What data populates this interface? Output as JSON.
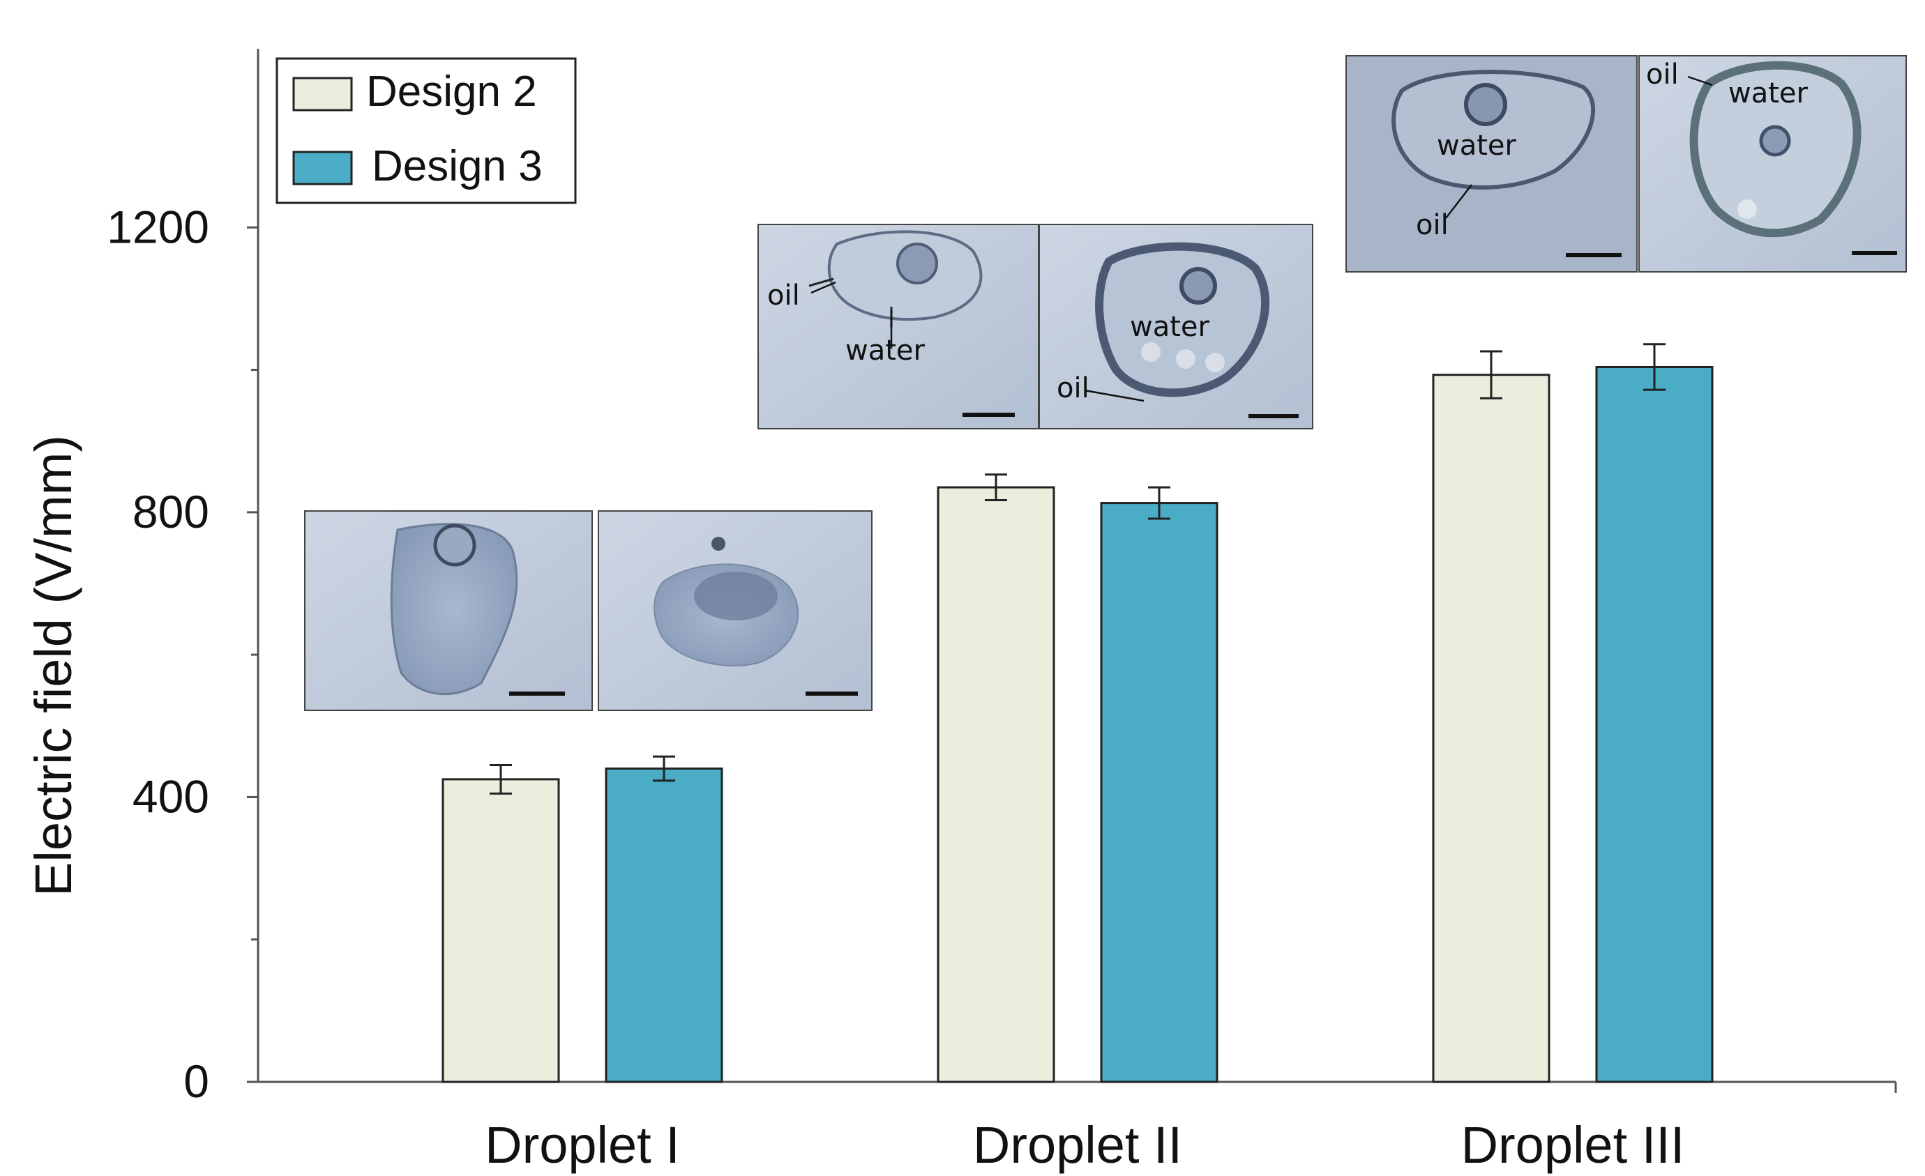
{
  "chart_data": {
    "type": "bar",
    "categories": [
      "Droplet I",
      "Droplet II",
      "Droplet III"
    ],
    "series": [
      {
        "name": "Design 2",
        "values": [
          425,
          835,
          993
        ],
        "errors": [
          20,
          18,
          33
        ],
        "color": "#eceedd"
      },
      {
        "name": "Design 3",
        "values": [
          440,
          813,
          1004
        ],
        "errors": [
          17,
          22,
          32
        ],
        "color": "#4aacc5"
      }
    ],
    "title": "",
    "xlabel": "",
    "ylabel": "Electric field (V/mm)",
    "ylim": [
      0,
      1400
    ],
    "yticks": [
      0,
      400,
      800,
      1200
    ],
    "minor_yticks": [
      200,
      600,
      1000
    ],
    "grid": false,
    "legend_position": "top-left",
    "error_bars": true,
    "inset_labels": {
      "oil": "oil",
      "water": "water"
    }
  }
}
